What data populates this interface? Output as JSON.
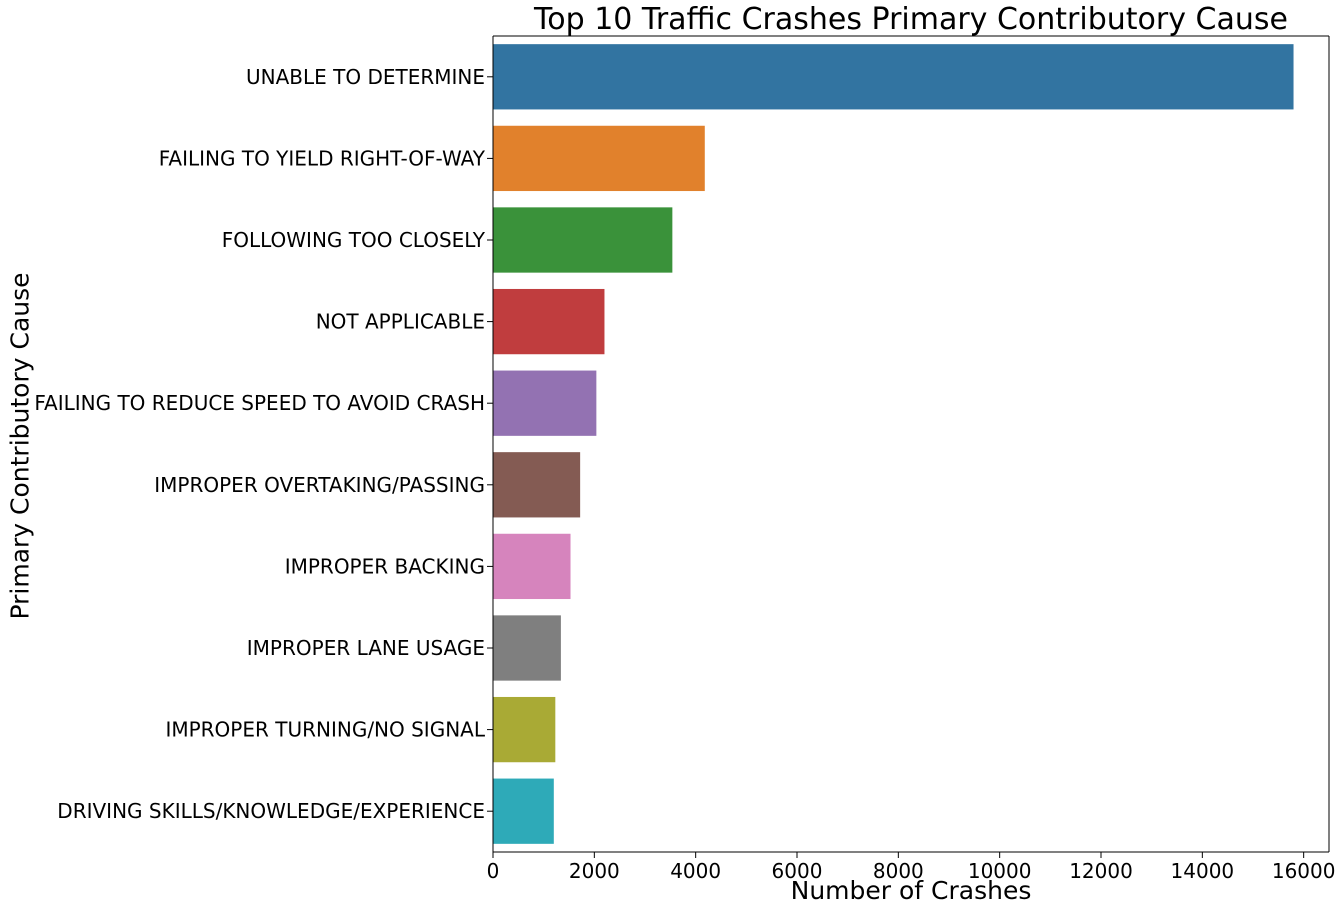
{
  "chart_data": {
    "type": "bar",
    "orientation": "horizontal",
    "title": "Top 10 Traffic Crashes Primary Contributory Cause",
    "xlabel": "Number of Crashes",
    "ylabel": "Primary Contributory Cause",
    "xlim": [
      0,
      16500
    ],
    "xticks": [
      0,
      2000,
      4000,
      6000,
      8000,
      10000,
      12000,
      14000,
      16000
    ],
    "grid": false,
    "categories": [
      "UNABLE TO DETERMINE",
      "FAILING TO YIELD RIGHT-OF-WAY",
      "FOLLOWING TOO CLOSELY",
      "NOT APPLICABLE",
      "FAILING TO REDUCE SPEED TO AVOID CRASH",
      "IMPROPER OVERTAKING/PASSING",
      "IMPROPER BACKING",
      "IMPROPER LANE USAGE",
      "IMPROPER TURNING/NO SIGNAL",
      "DRIVING SKILLS/KNOWLEDGE/EXPERIENCE"
    ],
    "values": [
      15800,
      4180,
      3540,
      2200,
      2040,
      1720,
      1530,
      1340,
      1230,
      1200
    ],
    "colors": [
      "#3274a1",
      "#e1812c",
      "#3a923a",
      "#c03d3e",
      "#9372b2",
      "#845b53",
      "#d684bd",
      "#7f7f7f",
      "#a9aa35",
      "#2eaab8"
    ]
  }
}
